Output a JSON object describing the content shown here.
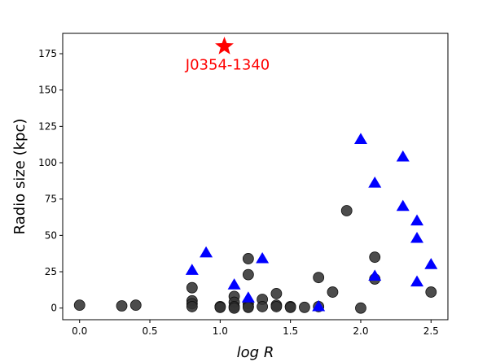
{
  "chart_data": {
    "type": "scatter",
    "xlabel": "log R",
    "ylabel": "Radio size (kpc)",
    "xlim": [
      -0.12,
      2.62
    ],
    "ylim": [
      -8,
      189
    ],
    "x_ticks": [
      0.0,
      0.5,
      1.0,
      1.5,
      2.0,
      2.5
    ],
    "x_tick_labels": [
      "0.0",
      "0.5",
      "1.0",
      "1.5",
      "2.0",
      "2.5"
    ],
    "y_ticks": [
      0,
      25,
      50,
      75,
      100,
      125,
      150,
      175
    ],
    "y_tick_labels": [
      "0",
      "25",
      "50",
      "75",
      "100",
      "125",
      "150",
      "175"
    ],
    "grid": false,
    "series": [
      {
        "marker": "circle",
        "color": "#333333",
        "points": [
          [
            0.0,
            2
          ],
          [
            0.3,
            1.5
          ],
          [
            0.4,
            2
          ],
          [
            0.8,
            14
          ],
          [
            0.8,
            5
          ],
          [
            0.8,
            3
          ],
          [
            0.8,
            1
          ],
          [
            1.0,
            1
          ],
          [
            1.0,
            0.5
          ],
          [
            1.1,
            8
          ],
          [
            1.1,
            4
          ],
          [
            1.1,
            1
          ],
          [
            1.1,
            0
          ],
          [
            1.2,
            34
          ],
          [
            1.2,
            23
          ],
          [
            1.2,
            3
          ],
          [
            1.2,
            1
          ],
          [
            1.2,
            0.5
          ],
          [
            1.3,
            6
          ],
          [
            1.3,
            1
          ],
          [
            1.4,
            10
          ],
          [
            1.4,
            2
          ],
          [
            1.4,
            1
          ],
          [
            1.5,
            1
          ],
          [
            1.5,
            0.5
          ],
          [
            1.6,
            0.5
          ],
          [
            1.7,
            21
          ],
          [
            1.7,
            1
          ],
          [
            1.8,
            11
          ],
          [
            1.9,
            67
          ],
          [
            2.0,
            0
          ],
          [
            2.1,
            35
          ],
          [
            2.1,
            20
          ],
          [
            2.5,
            11
          ]
        ]
      },
      {
        "marker": "triangle",
        "color": "#0000ff",
        "points": [
          [
            0.8,
            26
          ],
          [
            0.9,
            38
          ],
          [
            1.1,
            16
          ],
          [
            1.2,
            7
          ],
          [
            1.3,
            34
          ],
          [
            1.7,
            1
          ],
          [
            2.0,
            116
          ],
          [
            2.1,
            86
          ],
          [
            2.1,
            22
          ],
          [
            2.3,
            104
          ],
          [
            2.3,
            70
          ],
          [
            2.4,
            60
          ],
          [
            2.4,
            48
          ],
          [
            2.4,
            18
          ],
          [
            2.5,
            30
          ]
        ]
      },
      {
        "marker": "star",
        "color": "#ff0000",
        "points": [
          [
            1.03,
            180
          ]
        ]
      }
    ],
    "annotations": [
      {
        "text": "J0354-1340",
        "x": 1.03,
        "y": 164,
        "color": "#ff0000"
      }
    ]
  }
}
